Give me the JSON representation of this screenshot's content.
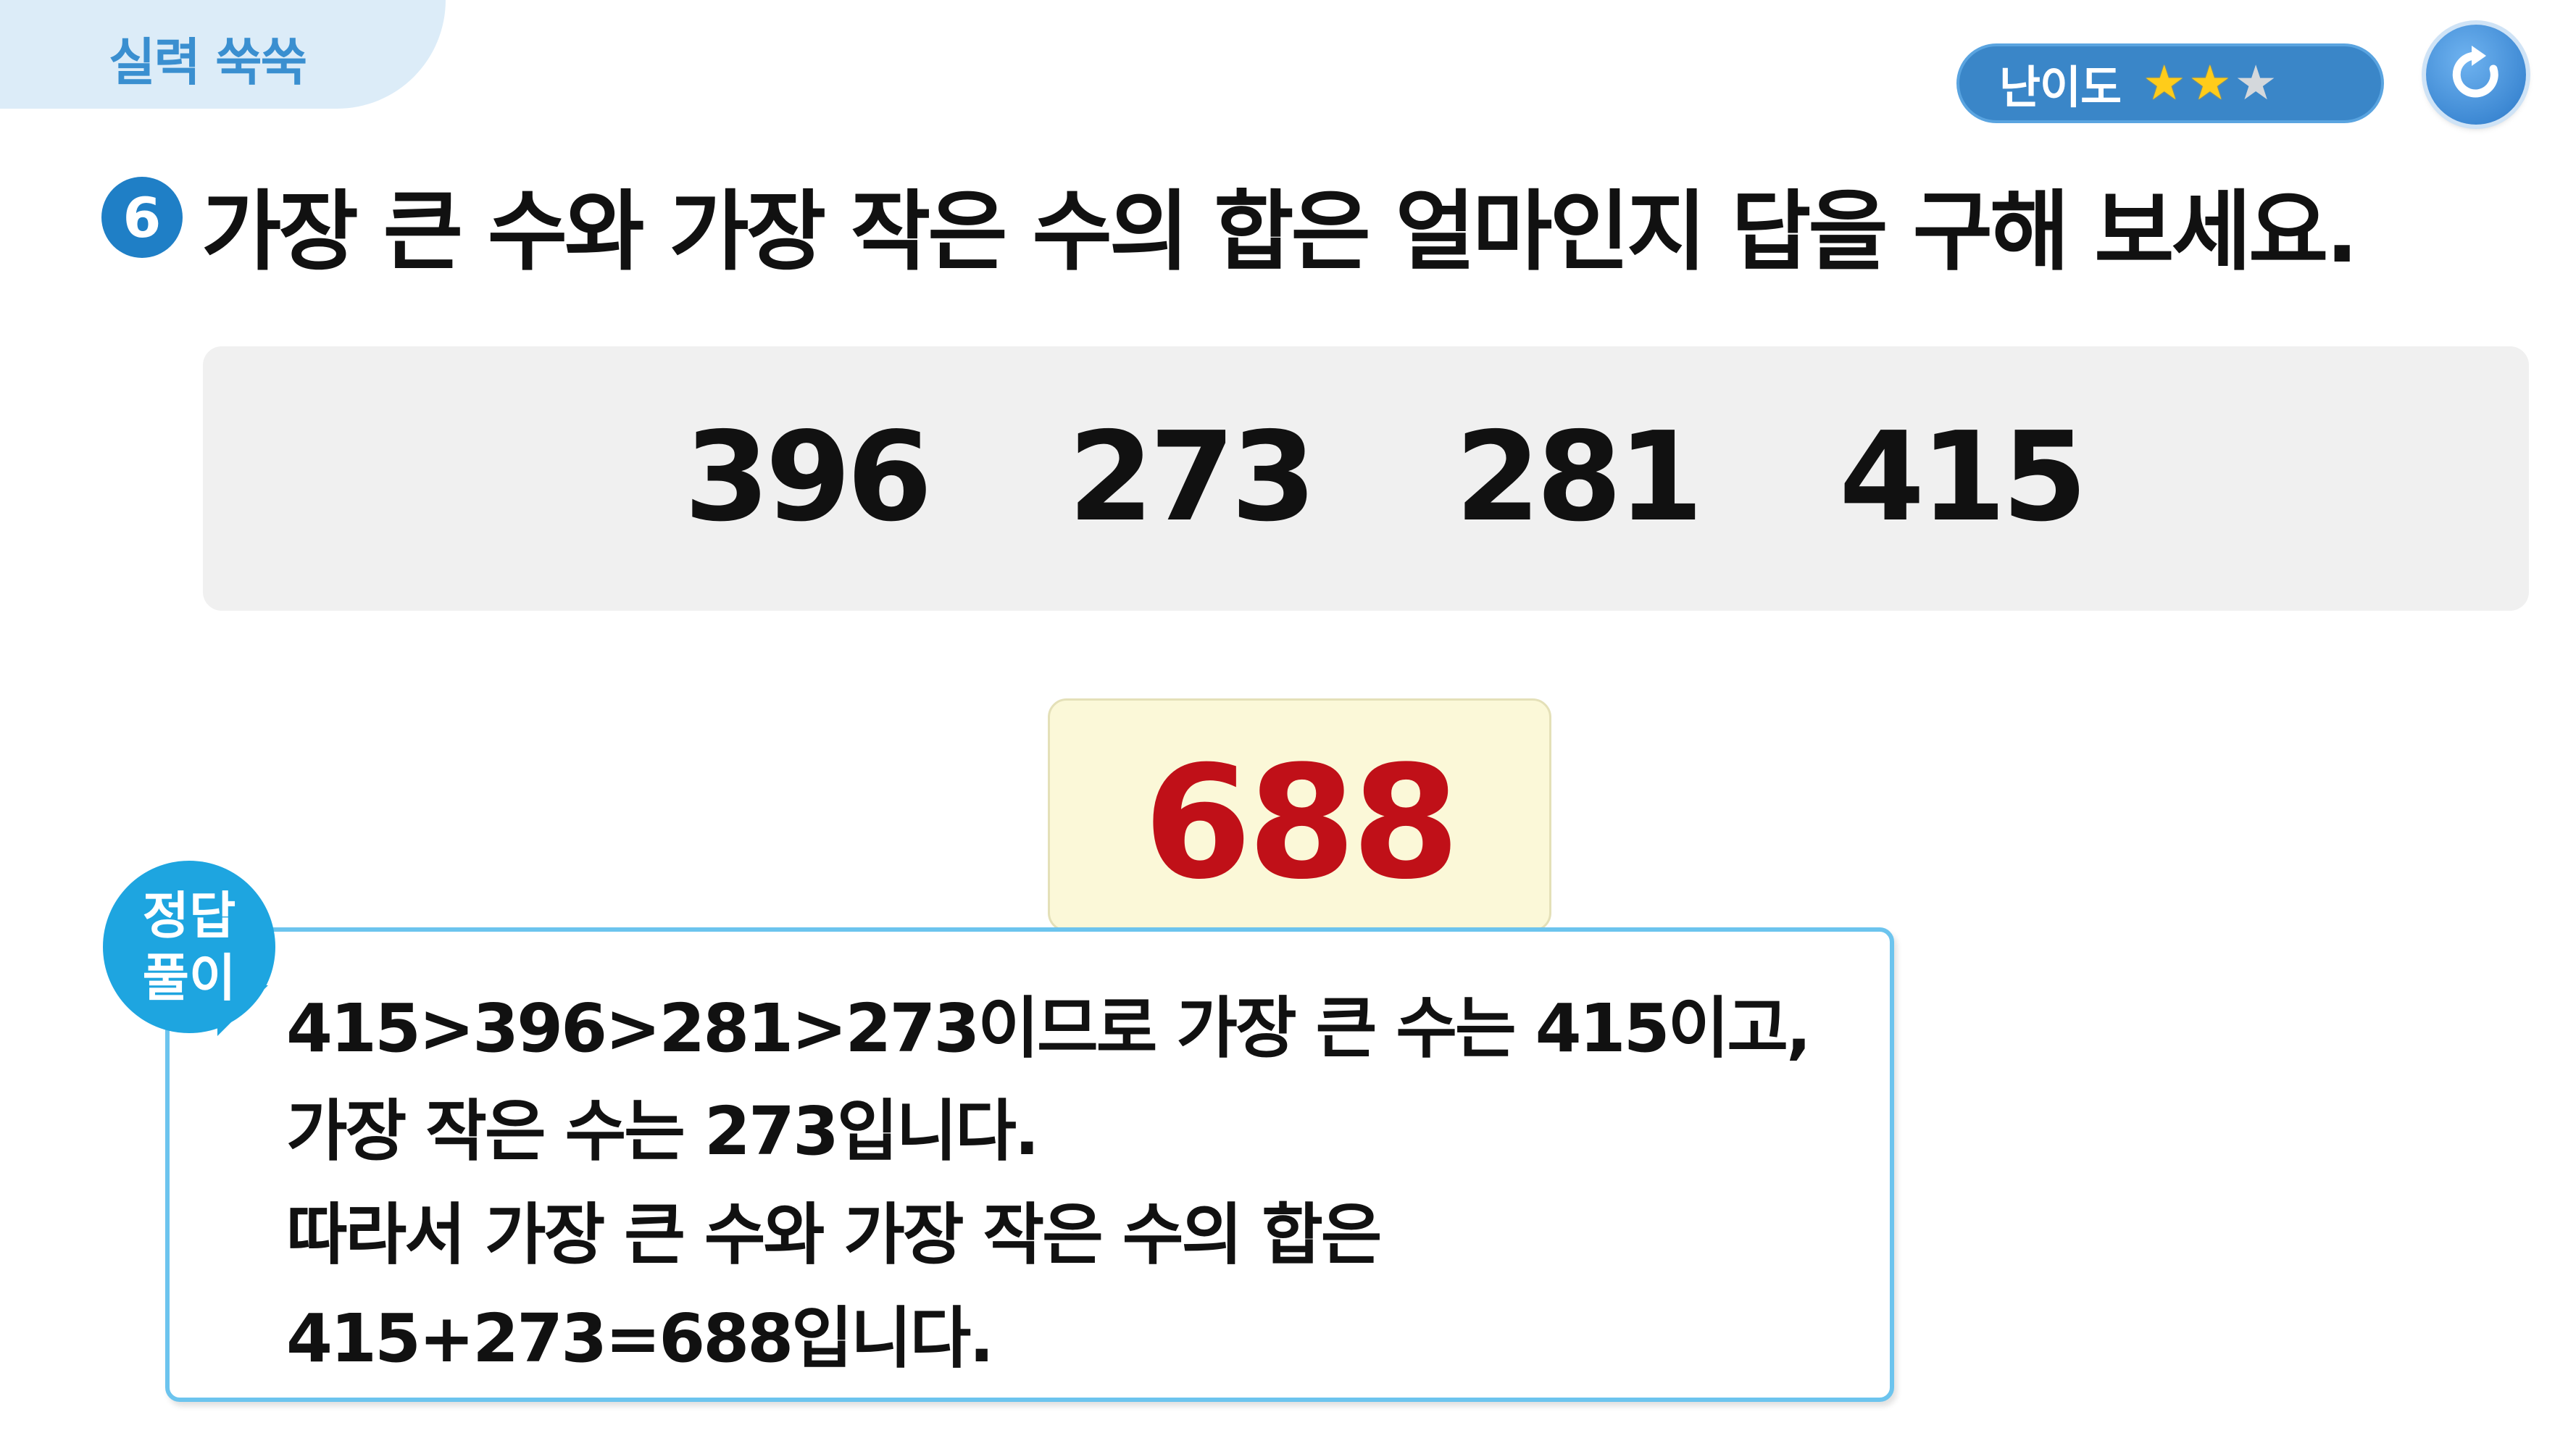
{
  "header": {
    "section_label": "실력 쑥쑥",
    "difficulty_label": "난이도",
    "difficulty_rating": 2,
    "difficulty_max": 3,
    "refresh_icon": "refresh-icon"
  },
  "question": {
    "number": "6",
    "text": "가장 큰 수와 가장 작은 수의 합은 얼마인지 답을 구해 보세요."
  },
  "numbers": [
    "396",
    "273",
    "281",
    "415"
  ],
  "answer": "688",
  "solution": {
    "badge_line1": "정답",
    "badge_line2": "풀이",
    "lines": [
      "415>396>281>273이므로 가장 큰 수는 415이고,",
      "가장 작은 수는 273입니다.",
      "따라서 가장 큰 수와 가장 작은 수의 합은",
      "415+273=688입니다."
    ]
  },
  "colors": {
    "accent": "#1f7fc6",
    "answer": "#c01018",
    "solution_border": "#6cc4ee",
    "star_on": "#ffcc1a",
    "star_off": "#d4d8dc"
  }
}
